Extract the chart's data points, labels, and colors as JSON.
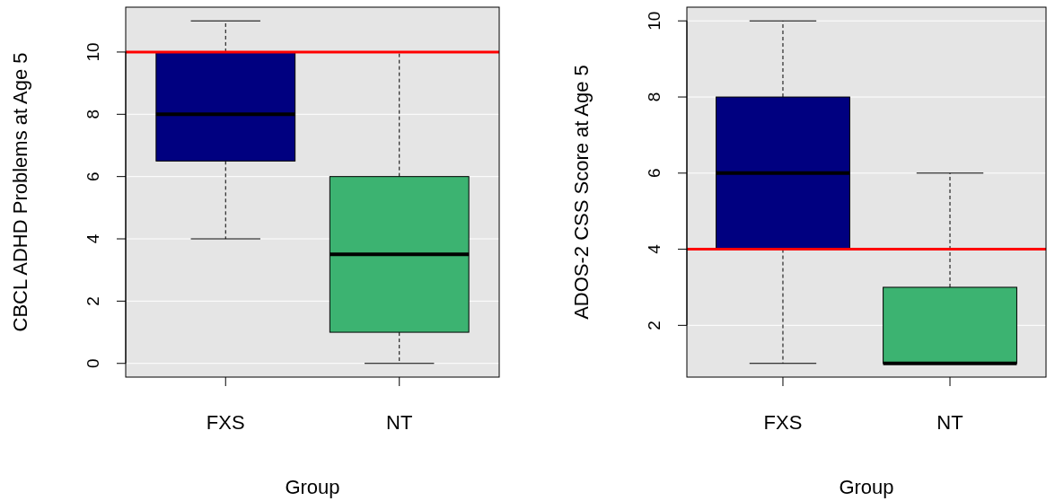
{
  "chart_data": [
    {
      "type": "box",
      "xlabel": "Group",
      "ylabel": "CBCL ADHD Problems at Age 5",
      "categories": [
        "FXS",
        "NT"
      ],
      "boxes": [
        {
          "low": 4,
          "q1": 6.5,
          "median": 8,
          "q3": 10,
          "high": 11
        },
        {
          "low": 0,
          "q1": 1,
          "median": 3.5,
          "q3": 6,
          "high": 10
        }
      ],
      "colors": [
        "#000080",
        "#3cb371"
      ],
      "ylim": [
        -0.44,
        11.44
      ],
      "yticks": [
        0,
        2,
        4,
        6,
        8,
        10
      ],
      "grid": "y",
      "ref_lines": [
        {
          "axis": "y",
          "value": 10,
          "color": "#ff0000"
        }
      ]
    },
    {
      "type": "box",
      "xlabel": "Group",
      "ylabel": "ADOS-2 CSS Score at Age 5",
      "categories": [
        "FXS",
        "NT"
      ],
      "boxes": [
        {
          "low": 1,
          "q1": 4,
          "median": 6,
          "q3": 8,
          "high": 10
        },
        {
          "low": 1,
          "q1": 1,
          "median": 1,
          "q3": 3,
          "high": 6
        }
      ],
      "colors": [
        "#000080",
        "#3cb371"
      ],
      "ylim": [
        0.64,
        10.36
      ],
      "yticks": [
        2,
        4,
        6,
        8,
        10
      ],
      "grid": "y",
      "ref_lines": [
        {
          "axis": "y",
          "value": 4,
          "color": "#ff0000"
        }
      ]
    }
  ]
}
